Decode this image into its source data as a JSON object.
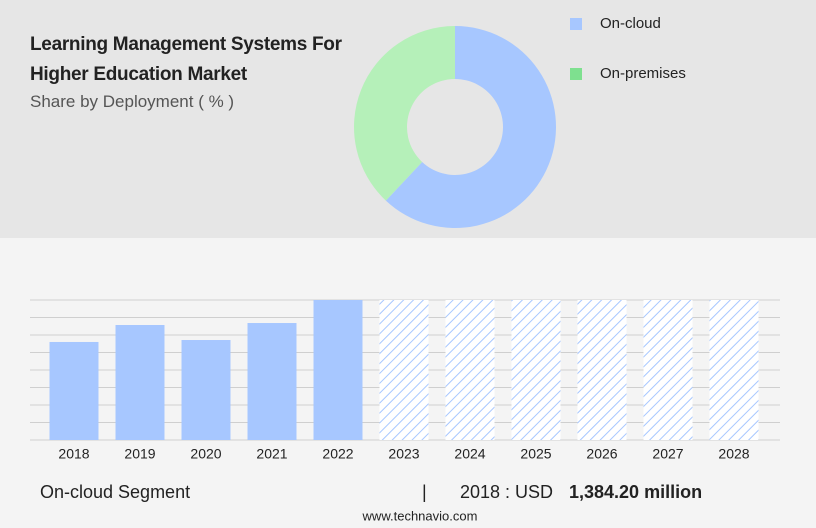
{
  "chart_data": [
    {
      "type": "donut",
      "title": "Learning Management Systems For Higher Education Market",
      "subtitle": "Share by Deployment ( % )",
      "categories": [
        "On-cloud",
        "On-premises"
      ],
      "values": [
        62,
        38
      ],
      "colors": [
        "#a7c7ff",
        "#b5f0b9"
      ],
      "legend_colors": [
        "#a7c7ff",
        "#7ee08f"
      ],
      "legend": "top-right"
    },
    {
      "type": "bar",
      "categories": [
        "2018",
        "2019",
        "2020",
        "2021",
        "2022",
        "2023",
        "2024",
        "2025",
        "2026",
        "2027",
        "2028"
      ],
      "values": [
        1384.2,
        1624,
        1412,
        1652,
        1977,
        null,
        null,
        null,
        null,
        null,
        null
      ],
      "color": "#a7c7ff",
      "ylim": [
        0,
        1977
      ],
      "grid": true
    }
  ],
  "footer": {
    "segment": "On-cloud Segment",
    "separator": "|",
    "year_label": "2018 : USD",
    "amount": "1,384.20 million",
    "source": "www.technavio.com"
  }
}
